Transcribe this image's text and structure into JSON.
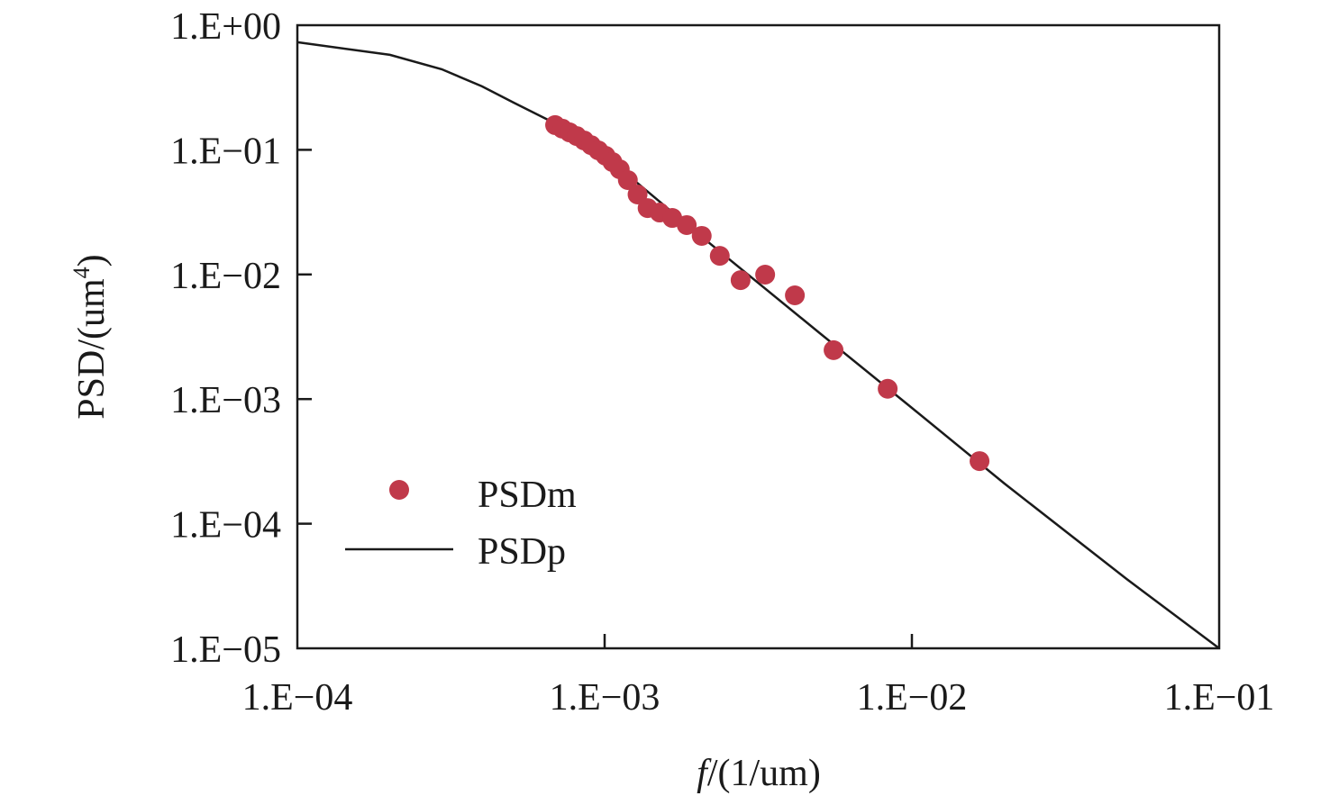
{
  "chart_data": {
    "type": "scatter",
    "title": "",
    "xlabel_italic": "f",
    "xlabel_rest": "/(1/um)",
    "ylabel": "PSD/(um",
    "ylabel_sup": "4",
    "ylabel_close": ")",
    "xscale": "log",
    "yscale": "log",
    "xlim": [
      0.0001,
      0.1
    ],
    "ylim": [
      1e-05,
      1
    ],
    "x_ticks": [
      0.0001,
      0.001,
      0.01,
      0.1
    ],
    "x_tick_labels": [
      "1.E−04",
      "1.E−03",
      "1.E−02",
      "1.E−01"
    ],
    "y_ticks": [
      1,
      0.1,
      0.01,
      0.001,
      0.0001,
      1e-05
    ],
    "y_tick_labels": [
      "1.E+00",
      "1.E−01",
      "1.E−02",
      "1.E−03",
      "1.E−04",
      "1.E−05"
    ],
    "legend_position": "lower-left",
    "series": [
      {
        "name": "PSDm",
        "kind": "scatter",
        "color": "#c0394a",
        "x": [
          0.00069,
          0.000728,
          0.000769,
          0.000811,
          0.000857,
          0.000904,
          0.000954,
          0.001007,
          0.00106,
          0.00112,
          0.00119,
          0.00128,
          0.00138,
          0.00151,
          0.00166,
          0.00185,
          0.00207,
          0.00237,
          0.00277,
          0.00333,
          0.00416,
          0.00556,
          0.00834,
          0.0166
        ],
        "y": [
          0.158,
          0.148,
          0.138,
          0.129,
          0.119,
          0.109,
          0.099,
          0.0896,
          0.0798,
          0.0698,
          0.0572,
          0.0438,
          0.0341,
          0.0314,
          0.0284,
          0.0249,
          0.0204,
          0.0141,
          0.009,
          0.00997,
          0.0068,
          0.00247,
          0.00121,
          0.000318
        ]
      },
      {
        "name": "PSDp",
        "kind": "line",
        "color": "#1a1a1a",
        "x": [
          0.0001,
          0.0002,
          0.000295,
          0.000399,
          0.000506,
          0.00069,
          0.001,
          0.002,
          0.005,
          0.01,
          0.02,
          0.05,
          0.1
        ],
        "y": [
          0.73,
          0.578,
          0.443,
          0.323,
          0.239,
          0.163,
          0.09,
          0.0215,
          0.0034,
          0.00085,
          0.00021,
          3.6e-05,
          1e-05
        ]
      }
    ]
  }
}
